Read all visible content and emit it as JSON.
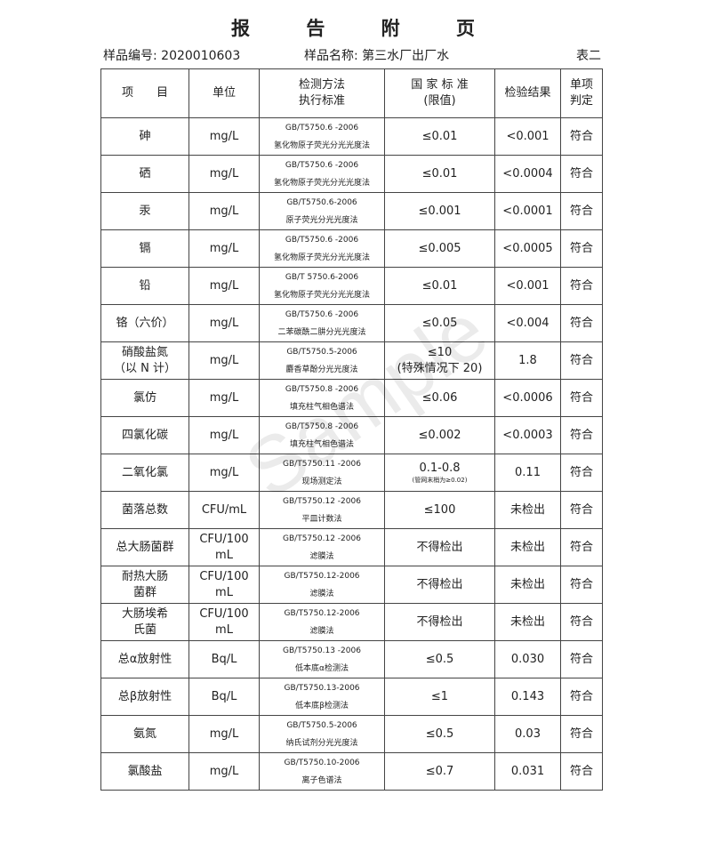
{
  "title": "报 告 附 页",
  "sample_no": "样品编号: 2020010603",
  "sample_name": "样品名称: 第三水厂出厂水",
  "table_label": "表二",
  "headers": {
    "item": "项　　目",
    "unit": "单位",
    "method1": "检测方法",
    "method2": "执行标准",
    "std1": "国 家 标 准",
    "std2": "(限值)",
    "result": "检验结果",
    "judge1": "单项",
    "judge2": "判定"
  },
  "rows": [
    {
      "item": "砷",
      "unit": "mg/L",
      "std": "GB/T5750.6 -2006",
      "method": "氢化物原子荧光分光光度法",
      "limit": "≤0.01",
      "result": "<0.001",
      "judge": "符合"
    },
    {
      "item": "硒",
      "unit": "mg/L",
      "std": "GB/T5750.6 -2006",
      "method": "氢化物原子荧光分光光度法",
      "limit": "≤0.01",
      "result": "<0.0004",
      "judge": "符合"
    },
    {
      "item": "汞",
      "unit": "mg/L",
      "std": "GB/T5750.6-2006",
      "method": "原子荧光分光光度法",
      "limit": "≤0.001",
      "result": "<0.0001",
      "judge": "符合"
    },
    {
      "item": "镉",
      "unit": "mg/L",
      "std": "GB/T5750.6 -2006",
      "method": "氢化物原子荧光分光光度法",
      "limit": "≤0.005",
      "result": "<0.0005",
      "judge": "符合"
    },
    {
      "item": "铅",
      "unit": "mg/L",
      "std": "GB/T 5750.6-2006",
      "method": "氢化物原子荧光分光光度法",
      "limit": "≤0.01",
      "result": "<0.001",
      "judge": "符合"
    },
    {
      "item": "铬（六价）",
      "unit": "mg/L",
      "std": "GB/T5750.6 -2006",
      "method": "二苯碳酰二肼分光光度法",
      "limit": "≤0.05",
      "result": "<0.004",
      "judge": "符合"
    },
    {
      "item": "硝酸盐氮\n（以 N 计）",
      "unit": "mg/L",
      "std": "GB/T5750.5-2006",
      "method": "麝香草酚分光光度法",
      "limit": "≤10\n(特殊情况下 20)",
      "result": "1.8",
      "judge": "符合"
    },
    {
      "item": "氯仿",
      "unit": "mg/L",
      "std": "GB/T5750.8 -2006",
      "method": "填充柱气相色谱法",
      "limit": "≤0.06",
      "result": "<0.0006",
      "judge": "符合"
    },
    {
      "item": "四氯化碳",
      "unit": "mg/L",
      "std": "GB/T5750.8 -2006",
      "method": "填充柱气相色谱法",
      "limit": "≤0.002",
      "result": "<0.0003",
      "judge": "符合"
    },
    {
      "item": "二氧化氯",
      "unit": "mg/L",
      "std": "GB/T5750.11 -2006",
      "method": "现场测定法",
      "limit": "0.1-0.8",
      "note": "(管网末梢为≥0.02)",
      "result": "0.11",
      "judge": "符合"
    },
    {
      "item": "菌落总数",
      "unit": "CFU/mL",
      "std": "GB/T5750.12 -2006",
      "method": "平皿计数法",
      "limit": "≤100",
      "result": "未检出",
      "judge": "符合"
    },
    {
      "item": "总大肠菌群",
      "unit": "CFU/100\nmL",
      "std": "GB/T5750.12 -2006",
      "method": "滤膜法",
      "limit": "不得检出",
      "result": "未检出",
      "judge": "符合"
    },
    {
      "item": "耐热大肠\n菌群",
      "unit": "CFU/100\nmL",
      "std": "GB/T5750.12-2006",
      "method": "滤膜法",
      "limit": "不得检出",
      "result": "未检出",
      "judge": "符合"
    },
    {
      "item": "大肠埃希\n氏菌",
      "unit": "CFU/100\nmL",
      "std": "GB/T5750.12-2006",
      "method": "滤膜法",
      "limit": "不得检出",
      "result": "未检出",
      "judge": "符合"
    },
    {
      "item": "总α放射性",
      "unit": "Bq/L",
      "std": "GB/T5750.13 -2006",
      "method": "低本底α检测法",
      "limit": "≤0.5",
      "result": "0.030",
      "judge": "符合"
    },
    {
      "item": "总β放射性",
      "unit": "Bq/L",
      "std": "GB/T5750.13-2006",
      "method": "低本底β检测法",
      "limit": "≤1",
      "result": "0.143",
      "judge": "符合"
    },
    {
      "item": "氨氮",
      "unit": "mg/L",
      "std": "GB/T5750.5-2006",
      "method": "纳氏试剂分光光度法",
      "limit": "≤0.5",
      "result": "0.03",
      "judge": "符合"
    },
    {
      "item": "氯酸盐",
      "unit": "mg/L",
      "std": "GB/T5750.10-2006",
      "method": "离子色谱法",
      "limit": "≤0.7",
      "result": "0.031",
      "judge": "符合"
    }
  ],
  "watermark": "Sample"
}
